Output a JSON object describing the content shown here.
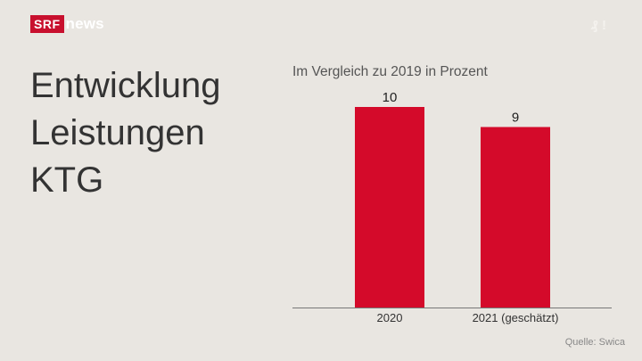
{
  "brand": {
    "srf": "SRF",
    "news": "news"
  },
  "corner_mark": "₰ !",
  "headline": [
    "Entwicklung",
    "Leistungen",
    "KTG"
  ],
  "chart_title": "Im Vergleich zu 2019 in Prozent",
  "source": "Quelle: Swica",
  "colors": {
    "bar": "#d40a2a",
    "background": "#e9e6e1",
    "axis": "#777777"
  },
  "chart_data": {
    "type": "bar",
    "title": "Im Vergleich zu 2019 in Prozent",
    "categories": [
      "2020",
      "2021 (geschätzt)"
    ],
    "values": [
      10,
      9
    ],
    "value_labels": [
      "10",
      "9"
    ],
    "ylim": [
      0,
      10
    ],
    "xlabel": "",
    "ylabel": "",
    "grid": false
  }
}
